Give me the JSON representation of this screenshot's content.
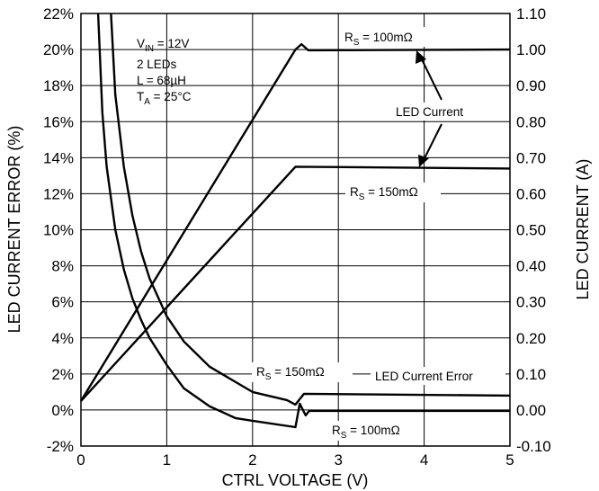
{
  "chart_data": {
    "type": "line",
    "xlabel": "CTRL VOLTAGE (V)",
    "ylabel_left": "LED CURRENT ERROR (%)",
    "ylabel_right": "LED CURRENT (A)",
    "xlim": [
      0,
      5
    ],
    "ylim_left": [
      -2,
      22
    ],
    "ylim_right": [
      -0.1,
      1.1
    ],
    "x_ticks": [
      "0",
      "1",
      "2",
      "3",
      "4",
      "5"
    ],
    "y_left_ticks": [
      "-2%",
      "0%",
      "2%",
      "4%",
      "6%",
      "8%",
      "10%",
      "12%",
      "14%",
      "16%",
      "18%",
      "20%",
      "22%"
    ],
    "y_right_ticks": [
      "-0.10",
      "0.00",
      "0.10",
      "0.20",
      "0.30",
      "0.40",
      "0.50",
      "0.60",
      "0.70",
      "0.80",
      "0.90",
      "1.00",
      "1.10"
    ],
    "grid": true,
    "conditions": {
      "vin": "V<sub>IN</sub> = 12V",
      "leds": "2 LEDs",
      "inductor": "L = 68µH",
      "temp": "T<sub>A</sub> = 25°C"
    },
    "annotations": {
      "led_current": "LED Current",
      "led_current_error": "LED Current Error",
      "rs100_current": "R<sub>S</sub> = 100mΩ",
      "rs150_current": "R<sub>S</sub> = 150mΩ",
      "rs150_error": "R<sub>S</sub> = 150mΩ",
      "rs100_error": "R<sub>S</sub> = 100mΩ"
    },
    "series": [
      {
        "axis": "right",
        "x": [
          0,
          2.5,
          2.57,
          2.65,
          5
        ],
        "y": [
          0.025,
          1.0,
          1.015,
          0.998,
          1.0
        ]
      },
      {
        "axis": "right",
        "x": [
          0,
          2.5,
          5
        ],
        "y": [
          0.025,
          0.675,
          0.67
        ]
      },
      {
        "axis": "left",
        "x": [
          0.2,
          0.25,
          0.3,
          0.4,
          0.5,
          0.6,
          0.7,
          0.8,
          1.0,
          1.2,
          1.5,
          1.8,
          2.0,
          2.5,
          2.5,
          2.55,
          2.62,
          2.66,
          5
        ],
        "y": [
          22,
          16.5,
          13.5,
          10.0,
          7.8,
          6.2,
          5.0,
          4.0,
          2.5,
          1.2,
          0.2,
          -0.45,
          -0.6,
          -0.95,
          -0.95,
          0.35,
          -0.3,
          -0.05,
          -0.05
        ]
      },
      {
        "axis": "left",
        "x": [
          0.35,
          0.4,
          0.5,
          0.6,
          0.7,
          0.8,
          1.0,
          1.2,
          1.5,
          2.0,
          2.4,
          2.5,
          2.5,
          2.6,
          5
        ],
        "y": [
          22,
          17.5,
          13.5,
          10.8,
          8.8,
          7.3,
          5.2,
          3.8,
          2.4,
          1.0,
          0.55,
          0.3,
          0.3,
          0.9,
          0.8
        ]
      }
    ]
  }
}
